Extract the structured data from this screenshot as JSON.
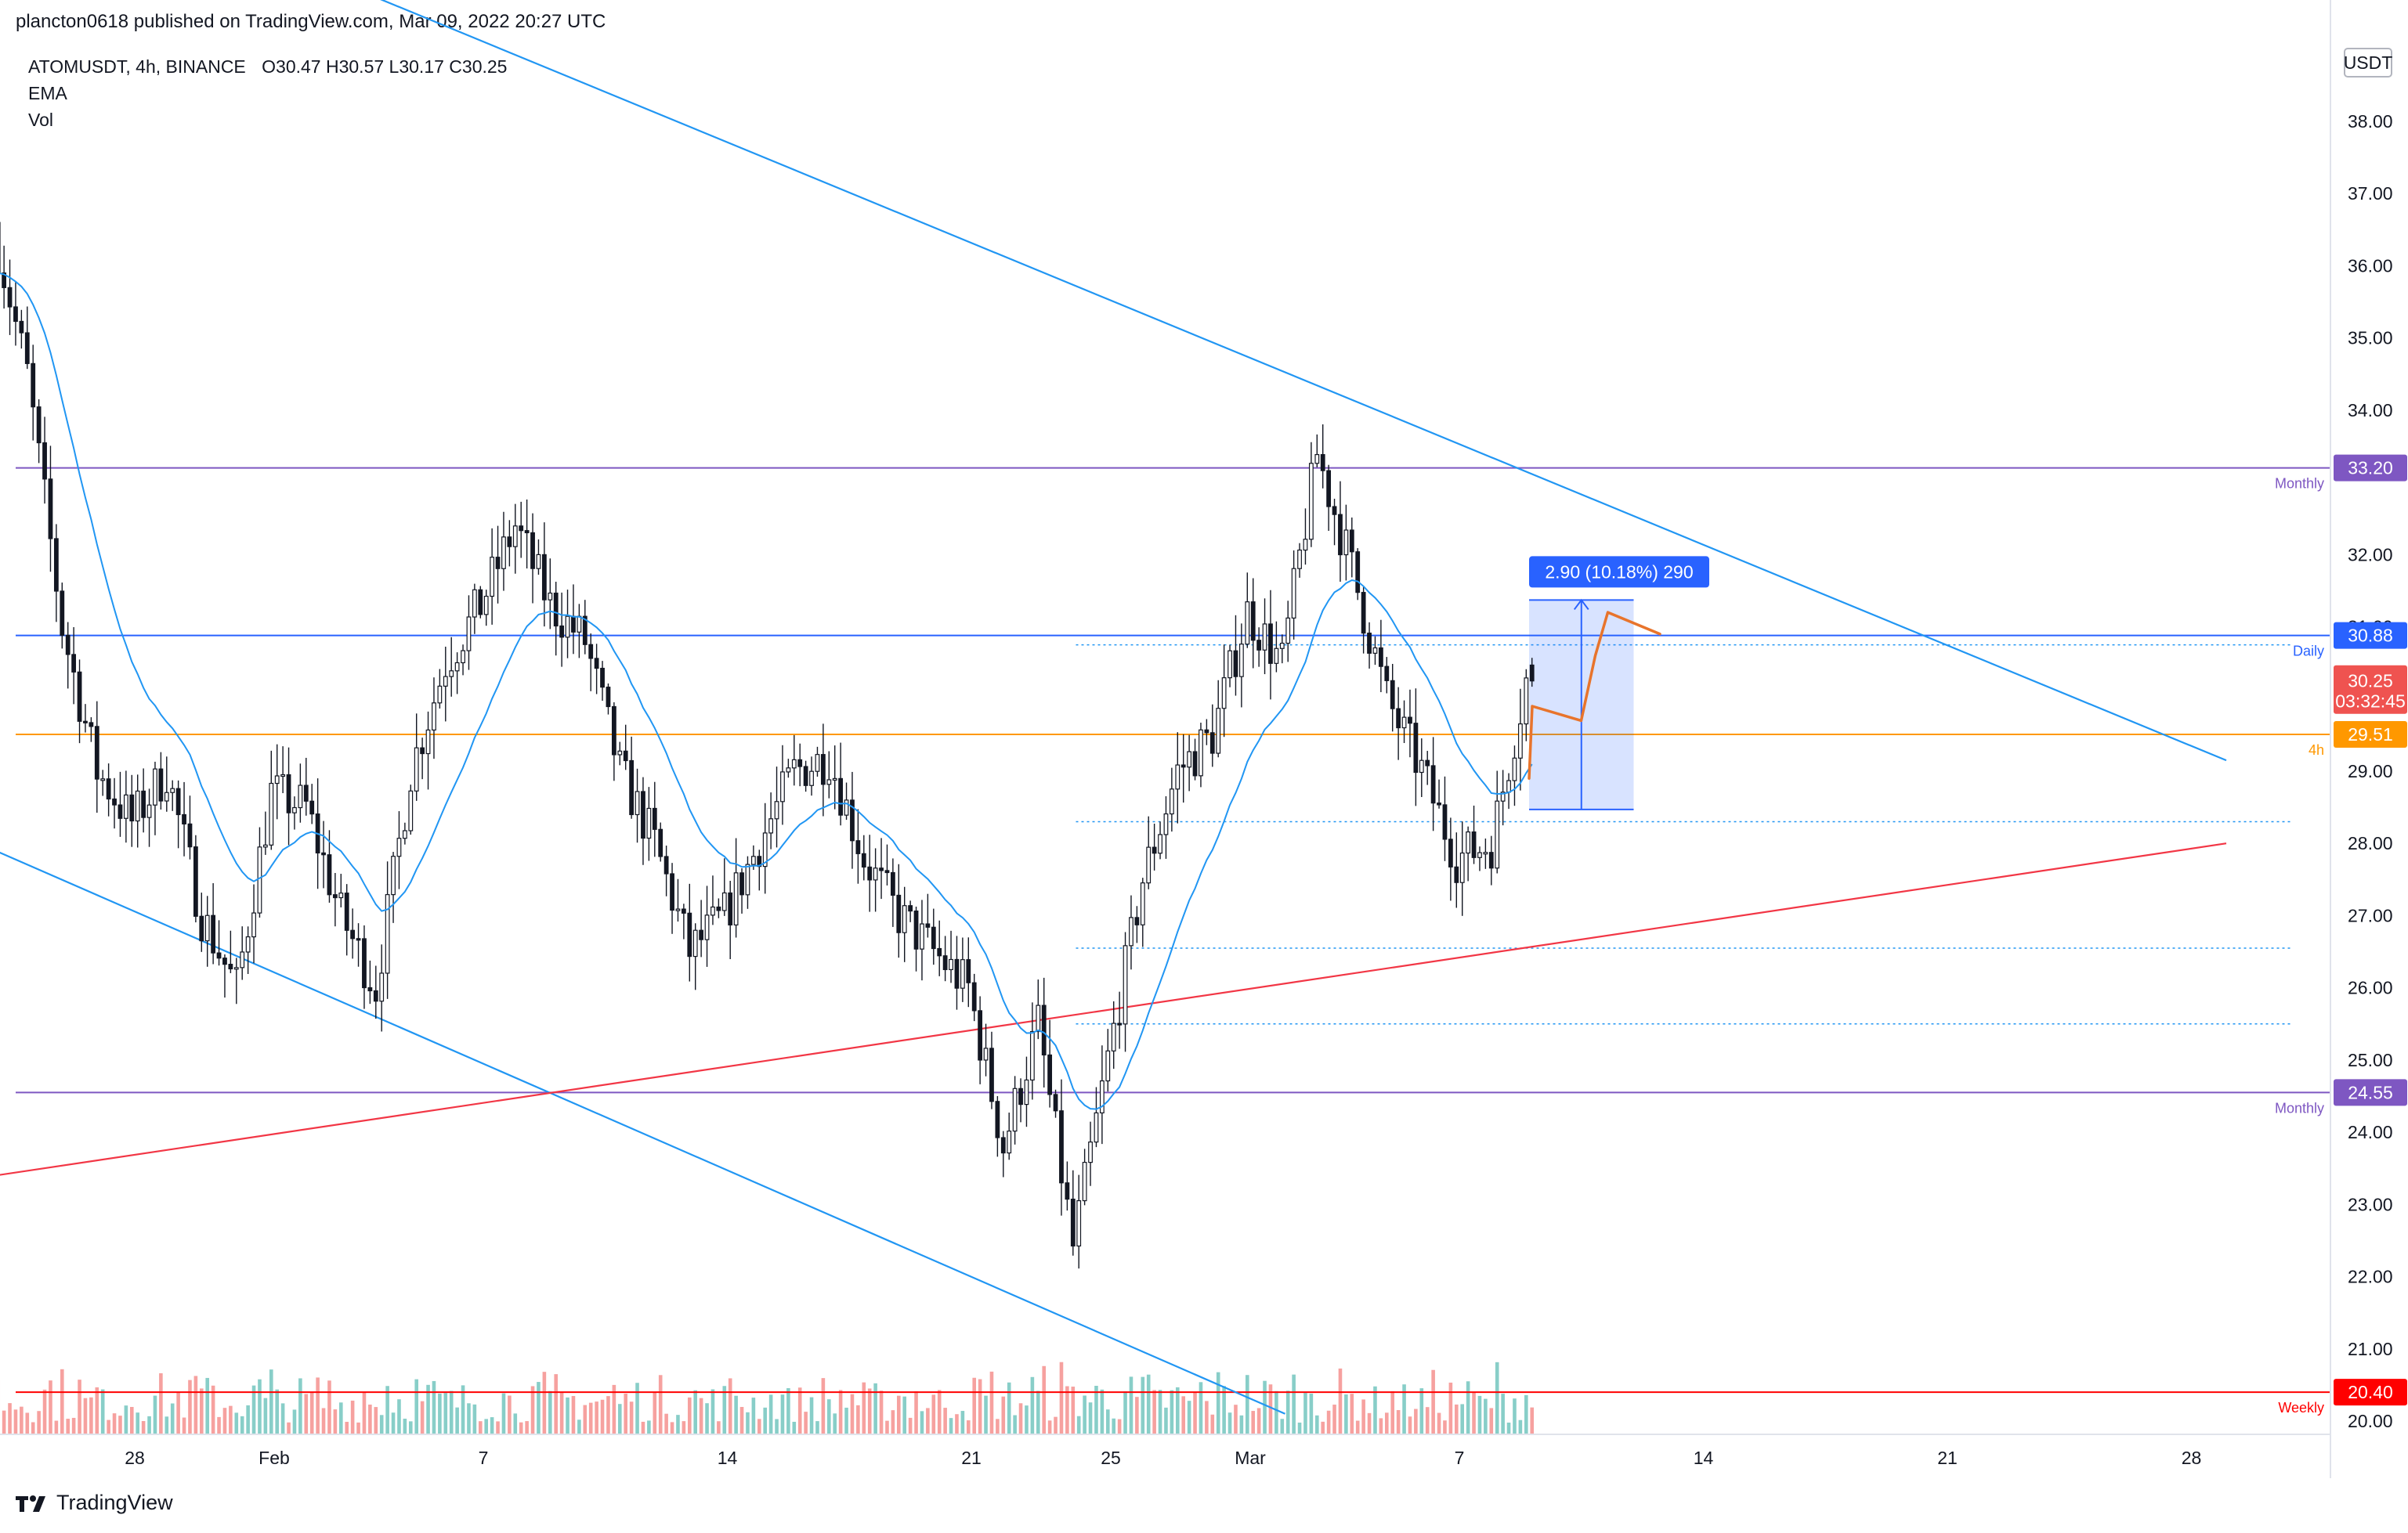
{
  "header": {
    "published": "plancton0618 published on TradingView.com, Mar 09, 2022 20:27 UTC"
  },
  "legend": {
    "symbol": "ATOMUSDT, 4h, BINANCE",
    "ohlc": "O30.47  H30.57  L30.17  C30.25",
    "indicators": [
      "EMA",
      "Vol"
    ]
  },
  "footer": {
    "brand": "TradingView"
  },
  "colors": {
    "up": "#26a69a",
    "down": "#ef5350",
    "ema": "#2196f3",
    "trend_blue": "#2196f3",
    "trend_red": "#f23645",
    "monthly": "#7e57c2",
    "daily": "#2962ff",
    "level_4h": "#ff9800",
    "weekly": "#ff0000",
    "projection": "#2962ff",
    "path": "#e8742c"
  },
  "chart_data": {
    "type": "candlestick",
    "symbol": "ATOMUSDT",
    "interval": "4h",
    "exchange": "BINANCE",
    "currency_unit": "USDT",
    "ylim": [
      20.0,
      39.0
    ],
    "y_ticks": [
      "20.00",
      "21.00",
      "22.00",
      "23.00",
      "24.00",
      "25.00",
      "26.00",
      "27.00",
      "28.00",
      "29.00",
      "31.00",
      "32.00",
      "34.00",
      "35.00",
      "36.00",
      "37.00",
      "38.00"
    ],
    "x_ticks": [
      "28",
      "Feb",
      "7",
      "14",
      "21",
      "25",
      "Mar",
      "7",
      "14",
      "21",
      "28"
    ],
    "x_tick_dates": [
      "2022-01-28",
      "2022-02-01",
      "2022-02-07",
      "2022-02-14",
      "2022-02-21",
      "2022-02-25",
      "2022-03-01",
      "2022-03-07",
      "2022-03-14",
      "2022-03-21",
      "2022-03-28"
    ],
    "anchors": [
      {
        "date": "2022-01-24",
        "price": 36.6
      },
      {
        "date": "2022-01-25",
        "price": 34.5
      },
      {
        "date": "2022-01-26",
        "price": 31.0
      },
      {
        "date": "2022-01-27",
        "price": 29.0
      },
      {
        "date": "2022-01-28",
        "price": 28.3
      },
      {
        "date": "2022-01-29",
        "price": 29.0
      },
      {
        "date": "2022-01-30",
        "price": 27.0
      },
      {
        "date": "2022-01-31",
        "price": 26.0
      },
      {
        "date": "2022-02-01",
        "price": 28.7
      },
      {
        "date": "2022-02-02",
        "price": 28.5
      },
      {
        "date": "2022-02-03",
        "price": 27.0
      },
      {
        "date": "2022-02-04",
        "price": 26.0
      },
      {
        "date": "2022-02-05",
        "price": 29.0
      },
      {
        "date": "2022-02-06",
        "price": 30.5
      },
      {
        "date": "2022-02-07",
        "price": 31.3
      },
      {
        "date": "2022-02-08",
        "price": 32.4
      },
      {
        "date": "2022-02-09",
        "price": 31.3
      },
      {
        "date": "2022-02-10",
        "price": 30.8
      },
      {
        "date": "2022-02-11",
        "price": 29.0
      },
      {
        "date": "2022-02-12",
        "price": 28.0
      },
      {
        "date": "2022-02-13",
        "price": 26.5
      },
      {
        "date": "2022-02-14",
        "price": 27.0
      },
      {
        "date": "2022-02-15",
        "price": 28.0
      },
      {
        "date": "2022-02-16",
        "price": 29.0
      },
      {
        "date": "2022-02-17",
        "price": 29.2
      },
      {
        "date": "2022-02-18",
        "price": 27.8
      },
      {
        "date": "2022-02-19",
        "price": 27.0
      },
      {
        "date": "2022-02-20",
        "price": 26.5
      },
      {
        "date": "2022-02-21",
        "price": 26.0
      },
      {
        "date": "2022-02-22",
        "price": 23.8
      },
      {
        "date": "2022-02-23",
        "price": 25.5
      },
      {
        "date": "2022-02-24",
        "price": 22.4
      },
      {
        "date": "2022-02-25",
        "price": 25.0
      },
      {
        "date": "2022-02-26",
        "price": 27.5
      },
      {
        "date": "2022-02-27",
        "price": 29.0
      },
      {
        "date": "2022-02-28",
        "price": 29.5
      },
      {
        "date": "2022-03-01",
        "price": 31.2
      },
      {
        "date": "2022-03-02",
        "price": 30.5
      },
      {
        "date": "2022-03-03",
        "price": 33.4
      },
      {
        "date": "2022-03-04",
        "price": 31.8
      },
      {
        "date": "2022-03-05",
        "price": 30.0
      },
      {
        "date": "2022-03-06",
        "price": 29.0
      },
      {
        "date": "2022-03-07",
        "price": 27.8
      },
      {
        "date": "2022-03-08",
        "price": 28.0
      },
      {
        "date": "2022-03-09",
        "price": 30.25
      }
    ],
    "last_price": 30.25,
    "countdown": "03:32:45",
    "levels": [
      {
        "label": "Monthly",
        "price": 33.2,
        "tag": "33.20",
        "color": "#7e57c2"
      },
      {
        "label": "Daily",
        "price": 30.88,
        "tag": "30.88",
        "color": "#2962ff"
      },
      {
        "label": "4h",
        "price": 29.51,
        "tag": "29.51",
        "color": "#ff9800"
      },
      {
        "label": "Monthly",
        "price": 24.55,
        "tag": "24.55",
        "color": "#7e57c2"
      },
      {
        "label": "Weekly",
        "price": 20.4,
        "tag": "20.40",
        "color": "#ff0000"
      }
    ],
    "dotted_levels": [
      30.75,
      28.3,
      26.55,
      25.5
    ],
    "trendlines": [
      {
        "name": "Descending resistance",
        "color": "#2196f3",
        "points": [
          {
            "date": "2022-02-03",
            "price": 39.9
          },
          {
            "date": "2022-03-29",
            "price": 29.15
          }
        ]
      },
      {
        "name": "Descending support",
        "color": "#2196f3",
        "points": [
          {
            "date": "2022-01-24",
            "price": 27.9
          },
          {
            "date": "2022-03-02",
            "price": 20.1
          }
        ]
      },
      {
        "name": "Ascending support",
        "color": "#f23645",
        "points": [
          {
            "date": "2022-01-24",
            "price": 23.4
          },
          {
            "date": "2022-03-29",
            "price": 28.0
          }
        ]
      }
    ],
    "projection": {
      "label": "2.90 (10.18%) 290",
      "change": 2.9,
      "change_pct": 10.18,
      "ticks": 290,
      "from_price": 28.47,
      "to_price": 31.37,
      "start_date": "2022-03-09",
      "end_date": "2022-03-12"
    }
  }
}
